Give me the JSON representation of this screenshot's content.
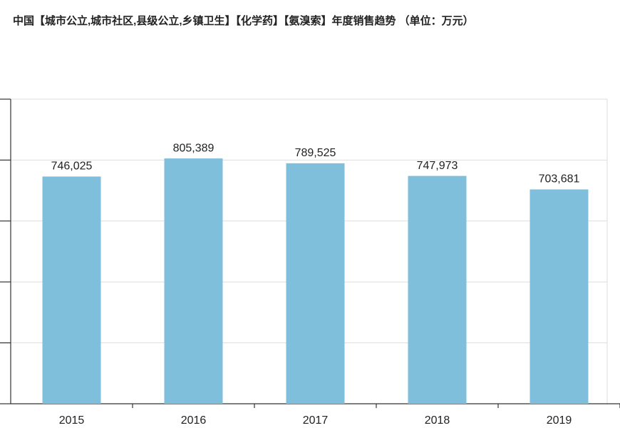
{
  "chart_data": {
    "type": "bar",
    "title": "中国【城市公立,城市社区,县级公立,乡镇卫生】【化学药】【氨溴索】年度销售趋势 （单位：万元）",
    "categories": [
      "2015",
      "2016",
      "2017",
      "2018",
      "2019"
    ],
    "values": [
      746025,
      805389,
      789525,
      747973,
      703681
    ],
    "value_labels": [
      "746,025",
      "805,389",
      "789,525",
      "747,973",
      "703,681"
    ],
    "color": "#7fbfdc",
    "ylim": [
      0,
      1000000
    ],
    "yticks": [
      0,
      200000,
      400000,
      600000,
      800000,
      1000000
    ],
    "grid": true
  }
}
